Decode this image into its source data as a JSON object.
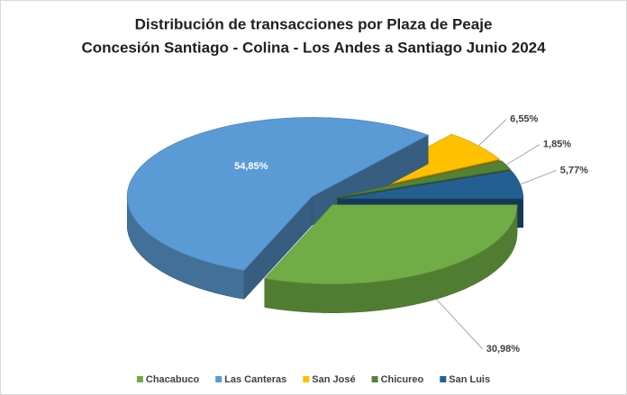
{
  "chart_data": {
    "type": "pie3d",
    "title": "Distribución de transacciones por Plaza de Peaje",
    "subtitle": "Concesión Santiago - Colina - Los Andes a Santiago Junio 2024",
    "categories": [
      "Chacabuco",
      "Las Canteras",
      "San José",
      "Chicureo",
      "San Luis"
    ],
    "values": [
      30.98,
      54.85,
      6.55,
      1.85,
      5.77
    ],
    "value_labels": [
      "30,98%",
      "54,85%",
      "6,55%",
      "1,85%",
      "5,77%"
    ],
    "colors": [
      "#70ad47",
      "#5b9bd5",
      "#ffc000",
      "#548235",
      "#255e91"
    ],
    "legend": "bottom"
  }
}
